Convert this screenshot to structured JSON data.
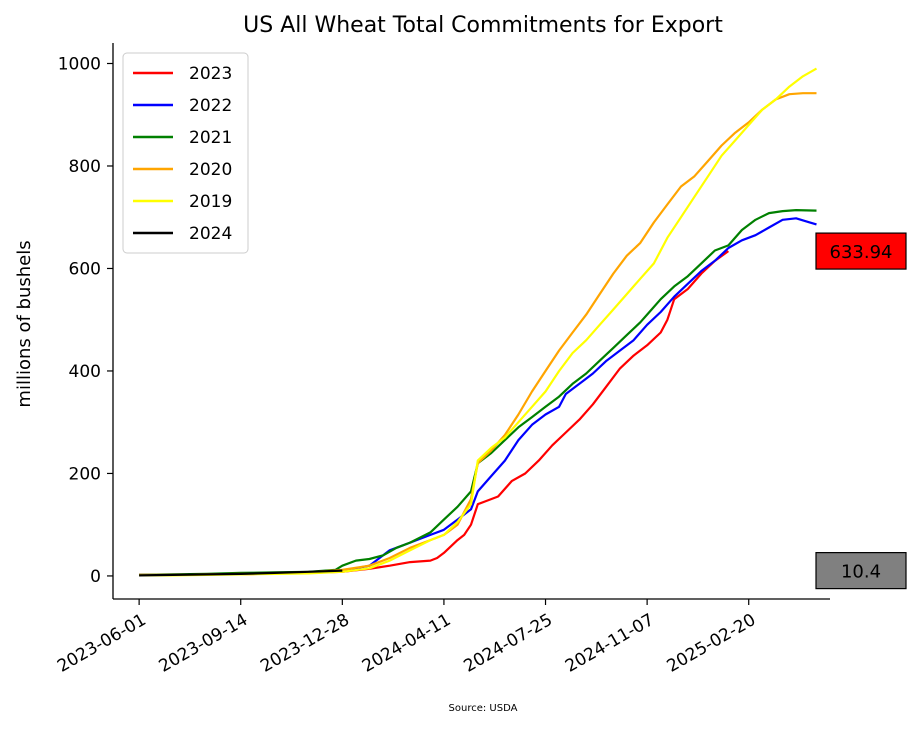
{
  "chart_data": {
    "type": "line",
    "title": "US All Wheat Total Commitments for Export",
    "xlabel": "",
    "ylabel": "millions of bushels",
    "source": "Source: USDA",
    "x_axis": "date",
    "xlim": [
      "2023-05-05",
      "2025-05-15"
    ],
    "ylim": [
      -45,
      1040
    ],
    "x_ticks": [
      "2023-06-01",
      "2023-09-14",
      "2023-12-28",
      "2024-04-11",
      "2024-07-25",
      "2024-11-07",
      "2025-02-20"
    ],
    "y_ticks": [
      0,
      200,
      400,
      600,
      800,
      1000
    ],
    "grid": false,
    "legend_position": "top-left",
    "annotations": [
      {
        "label": "633.94",
        "value": 633.94,
        "color": "#ff0000"
      },
      {
        "label": "10.4",
        "value": 10.4,
        "color": "#808080"
      }
    ],
    "series": [
      {
        "name": "2023",
        "color": "#ff0000",
        "points": [
          [
            "2023-06-01",
            2
          ],
          [
            "2023-07-06",
            2
          ],
          [
            "2023-08-10",
            3
          ],
          [
            "2023-09-14",
            3
          ],
          [
            "2023-10-19",
            5
          ],
          [
            "2023-11-23",
            6
          ],
          [
            "2023-12-28",
            8
          ],
          [
            "2024-01-25",
            14
          ],
          [
            "2024-02-15",
            20
          ],
          [
            "2024-03-07",
            27
          ],
          [
            "2024-03-28",
            30
          ],
          [
            "2024-04-04",
            35
          ],
          [
            "2024-04-11",
            45
          ],
          [
            "2024-04-25",
            70
          ],
          [
            "2024-05-02",
            80
          ],
          [
            "2024-05-09",
            100
          ],
          [
            "2024-05-16",
            140
          ],
          [
            "2024-05-23",
            145
          ],
          [
            "2024-06-06",
            155
          ],
          [
            "2024-06-20",
            185
          ],
          [
            "2024-07-04",
            200
          ],
          [
            "2024-07-18",
            225
          ],
          [
            "2024-08-01",
            255
          ],
          [
            "2024-08-15",
            280
          ],
          [
            "2024-08-29",
            305
          ],
          [
            "2024-09-12",
            335
          ],
          [
            "2024-09-26",
            370
          ],
          [
            "2024-10-10",
            405
          ],
          [
            "2024-10-24",
            430
          ],
          [
            "2024-11-07",
            450
          ],
          [
            "2024-11-21",
            475
          ],
          [
            "2024-11-28",
            500
          ],
          [
            "2024-12-05",
            540
          ],
          [
            "2024-12-19",
            560
          ],
          [
            "2025-01-02",
            590
          ],
          [
            "2025-01-16",
            615
          ],
          [
            "2025-01-30",
            634
          ]
        ]
      },
      {
        "name": "2022",
        "color": "#0000ff",
        "points": [
          [
            "2023-06-01",
            2
          ],
          [
            "2023-07-06",
            2
          ],
          [
            "2023-08-10",
            3
          ],
          [
            "2023-09-14",
            4
          ],
          [
            "2023-10-19",
            5
          ],
          [
            "2023-11-23",
            7
          ],
          [
            "2023-12-28",
            10
          ],
          [
            "2024-01-25",
            20
          ],
          [
            "2024-02-15",
            50
          ],
          [
            "2024-03-07",
            65
          ],
          [
            "2024-03-28",
            80
          ],
          [
            "2024-04-11",
            90
          ],
          [
            "2024-04-25",
            110
          ],
          [
            "2024-05-09",
            130
          ],
          [
            "2024-05-16",
            165
          ],
          [
            "2024-05-30",
            195
          ],
          [
            "2024-06-13",
            225
          ],
          [
            "2024-06-27",
            265
          ],
          [
            "2024-07-11",
            295
          ],
          [
            "2024-07-25",
            315
          ],
          [
            "2024-08-08",
            330
          ],
          [
            "2024-08-15",
            355
          ],
          [
            "2024-08-29",
            375
          ],
          [
            "2024-09-12",
            395
          ],
          [
            "2024-09-26",
            420
          ],
          [
            "2024-10-10",
            440
          ],
          [
            "2024-10-24",
            460
          ],
          [
            "2024-11-07",
            490
          ],
          [
            "2024-11-21",
            515
          ],
          [
            "2024-12-05",
            545
          ],
          [
            "2024-12-19",
            570
          ],
          [
            "2025-01-02",
            595
          ],
          [
            "2025-01-16",
            615
          ],
          [
            "2025-01-30",
            640
          ],
          [
            "2025-02-13",
            655
          ],
          [
            "2025-02-27",
            665
          ],
          [
            "2025-03-13",
            680
          ],
          [
            "2025-03-27",
            695
          ],
          [
            "2025-04-10",
            698
          ],
          [
            "2025-04-24",
            690
          ],
          [
            "2025-05-01",
            686
          ]
        ]
      },
      {
        "name": "2021",
        "color": "#008000",
        "points": [
          [
            "2023-06-01",
            2
          ],
          [
            "2023-07-06",
            3
          ],
          [
            "2023-08-10",
            4
          ],
          [
            "2023-09-14",
            6
          ],
          [
            "2023-10-19",
            7
          ],
          [
            "2023-11-23",
            8
          ],
          [
            "2023-12-21",
            12
          ],
          [
            "2023-12-28",
            20
          ],
          [
            "2024-01-11",
            30
          ],
          [
            "2024-01-25",
            33
          ],
          [
            "2024-02-08",
            40
          ],
          [
            "2024-02-22",
            55
          ],
          [
            "2024-03-07",
            65
          ],
          [
            "2024-03-28",
            85
          ],
          [
            "2024-04-11",
            110
          ],
          [
            "2024-04-25",
            135
          ],
          [
            "2024-05-09",
            165
          ],
          [
            "2024-05-16",
            220
          ],
          [
            "2024-05-30",
            240
          ],
          [
            "2024-06-13",
            265
          ],
          [
            "2024-06-27",
            290
          ],
          [
            "2024-07-11",
            310
          ],
          [
            "2024-07-25",
            330
          ],
          [
            "2024-08-08",
            350
          ],
          [
            "2024-08-22",
            375
          ],
          [
            "2024-09-05",
            395
          ],
          [
            "2024-09-19",
            420
          ],
          [
            "2024-10-03",
            445
          ],
          [
            "2024-10-17",
            470
          ],
          [
            "2024-10-31",
            495
          ],
          [
            "2024-11-07",
            510
          ],
          [
            "2024-11-21",
            540
          ],
          [
            "2024-12-05",
            565
          ],
          [
            "2024-12-19",
            585
          ],
          [
            "2025-01-02",
            610
          ],
          [
            "2025-01-16",
            635
          ],
          [
            "2025-01-30",
            645
          ],
          [
            "2025-02-13",
            675
          ],
          [
            "2025-02-27",
            695
          ],
          [
            "2025-03-13",
            708
          ],
          [
            "2025-03-27",
            712
          ],
          [
            "2025-04-10",
            714
          ],
          [
            "2025-05-01",
            713
          ]
        ]
      },
      {
        "name": "2020",
        "color": "#ffa500",
        "points": [
          [
            "2023-06-01",
            2
          ],
          [
            "2023-07-06",
            2
          ],
          [
            "2023-08-10",
            3
          ],
          [
            "2023-09-14",
            4
          ],
          [
            "2023-10-19",
            5
          ],
          [
            "2023-11-23",
            7
          ],
          [
            "2023-12-28",
            12
          ],
          [
            "2024-01-25",
            20
          ],
          [
            "2024-02-15",
            35
          ],
          [
            "2024-03-07",
            55
          ],
          [
            "2024-03-28",
            70
          ],
          [
            "2024-04-11",
            80
          ],
          [
            "2024-04-25",
            100
          ],
          [
            "2024-05-09",
            150
          ],
          [
            "2024-05-16",
            220
          ],
          [
            "2024-05-30",
            245
          ],
          [
            "2024-06-13",
            275
          ],
          [
            "2024-06-27",
            315
          ],
          [
            "2024-07-11",
            360
          ],
          [
            "2024-07-25",
            400
          ],
          [
            "2024-08-08",
            440
          ],
          [
            "2024-08-22",
            475
          ],
          [
            "2024-09-05",
            510
          ],
          [
            "2024-09-19",
            550
          ],
          [
            "2024-10-03",
            590
          ],
          [
            "2024-10-17",
            625
          ],
          [
            "2024-10-31",
            650
          ],
          [
            "2024-11-14",
            690
          ],
          [
            "2024-11-28",
            725
          ],
          [
            "2024-12-12",
            760
          ],
          [
            "2024-12-26",
            780
          ],
          [
            "2025-01-09",
            810
          ],
          [
            "2025-01-23",
            840
          ],
          [
            "2025-02-06",
            865
          ],
          [
            "2025-02-20",
            885
          ],
          [
            "2025-03-06",
            910
          ],
          [
            "2025-03-20",
            930
          ],
          [
            "2025-04-03",
            940
          ],
          [
            "2025-04-17",
            942
          ],
          [
            "2025-05-01",
            942
          ]
        ]
      },
      {
        "name": "2019",
        "color": "#ffff00",
        "points": [
          [
            "2023-06-01",
            1
          ],
          [
            "2023-07-06",
            1
          ],
          [
            "2023-08-10",
            2
          ],
          [
            "2023-09-14",
            3
          ],
          [
            "2023-10-19",
            4
          ],
          [
            "2023-11-23",
            5
          ],
          [
            "2023-12-28",
            8
          ],
          [
            "2024-01-25",
            15
          ],
          [
            "2024-02-15",
            30
          ],
          [
            "2024-03-07",
            50
          ],
          [
            "2024-03-28",
            70
          ],
          [
            "2024-04-11",
            80
          ],
          [
            "2024-04-25",
            105
          ],
          [
            "2024-05-09",
            140
          ],
          [
            "2024-05-16",
            225
          ],
          [
            "2024-05-30",
            250
          ],
          [
            "2024-06-13",
            270
          ],
          [
            "2024-06-27",
            300
          ],
          [
            "2024-07-11",
            330
          ],
          [
            "2024-07-25",
            360
          ],
          [
            "2024-08-08",
            400
          ],
          [
            "2024-08-22",
            435
          ],
          [
            "2024-09-05",
            460
          ],
          [
            "2024-09-19",
            490
          ],
          [
            "2024-10-03",
            520
          ],
          [
            "2024-10-17",
            550
          ],
          [
            "2024-10-31",
            580
          ],
          [
            "2024-11-14",
            610
          ],
          [
            "2024-11-28",
            660
          ],
          [
            "2024-12-12",
            700
          ],
          [
            "2024-12-26",
            740
          ],
          [
            "2025-01-09",
            780
          ],
          [
            "2025-01-23",
            820
          ],
          [
            "2025-02-06",
            850
          ],
          [
            "2025-02-20",
            880
          ],
          [
            "2025-03-06",
            910
          ],
          [
            "2025-03-20",
            930
          ],
          [
            "2025-04-03",
            955
          ],
          [
            "2025-04-17",
            975
          ],
          [
            "2025-05-01",
            990
          ]
        ]
      },
      {
        "name": "2024",
        "color": "#000000",
        "points": [
          [
            "2023-06-01",
            1
          ],
          [
            "2023-07-06",
            2
          ],
          [
            "2023-08-10",
            3
          ],
          [
            "2023-09-14",
            4
          ],
          [
            "2023-10-19",
            6
          ],
          [
            "2023-11-23",
            8
          ],
          [
            "2023-12-28",
            10.4
          ]
        ]
      }
    ]
  }
}
